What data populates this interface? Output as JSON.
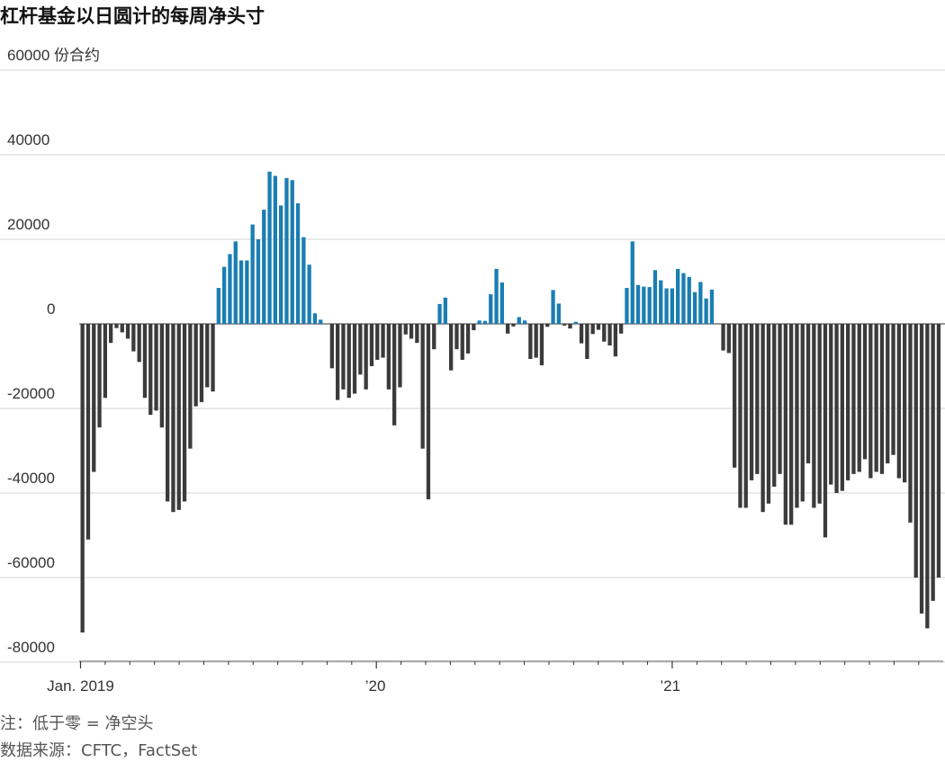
{
  "chart_data": {
    "type": "bar",
    "title": "杠杆基金以日圆计的每周净头寸",
    "ylabel_top": "60000 份合约",
    "ylim": [
      -80000,
      60000
    ],
    "yticks": [
      -80000,
      -60000,
      -40000,
      -20000,
      0,
      20000,
      40000,
      60000
    ],
    "ytick_labels": [
      "-80000",
      "-60000",
      "-40000",
      "-20000",
      "0",
      "20000",
      "40000",
      "60000 份合约"
    ],
    "xtick_labels": [
      {
        "label": "Jan. 2019",
        "week": 0
      },
      {
        "label": "’20",
        "week": 52
      },
      {
        "label": "’21",
        "week": 104
      }
    ],
    "colors": {
      "positive": "#1a7eb3",
      "negative": "#3b3b3b"
    },
    "values": [
      -73000,
      -51000,
      -35000,
      -24500,
      -17500,
      -4500,
      -1000,
      -2000,
      -3500,
      -6500,
      -9000,
      -17500,
      -21500,
      -20500,
      -24500,
      -42000,
      -44500,
      -44000,
      -42000,
      -29500,
      -19500,
      -18500,
      -15000,
      -16000,
      8500,
      13500,
      16500,
      19500,
      15000,
      15000,
      23500,
      20000,
      27000,
      36000,
      35000,
      28000,
      34500,
      34000,
      28500,
      20500,
      14000,
      2500,
      1000,
      0,
      -10500,
      -18000,
      -15500,
      -17500,
      -16500,
      -12000,
      -15500,
      -10000,
      -8500,
      -8000,
      -15500,
      -24000,
      -15000,
      -2500,
      -3500,
      -4500,
      -29500,
      -41500,
      -6000,
      4700,
      6200,
      -11000,
      -6000,
      -8500,
      -7000,
      -1500,
      800,
      700,
      7000,
      13000,
      9800,
      -2300,
      -600,
      1600,
      800,
      -8300,
      -8000,
      -9800,
      -700,
      8000,
      4800,
      -400,
      -1100,
      500,
      -4600,
      -8300,
      -2400,
      -1400,
      -4200,
      -5100,
      -7700,
      -2300,
      8500,
      19500,
      9200,
      8800,
      8700,
      12700,
      10300,
      8400,
      8400,
      13000,
      12000,
      11100,
      7500,
      9900,
      6000,
      8100,
      0,
      -6300,
      -6900,
      -34000,
      -43500,
      -43500,
      -37000,
      -35500,
      -44500,
      -42500,
      -38500,
      -35500,
      -47500,
      -47500,
      -43500,
      -42000,
      -33000,
      -43500,
      -42500,
      -50500,
      -38000,
      -40000,
      -39500,
      -37000,
      -35500,
      -35000,
      -32000,
      -36500,
      -35000,
      -35500,
      -33000,
      -31000,
      -36500,
      -37500,
      -47000,
      -60000,
      -68500,
      -72000,
      -65500,
      -60000
    ]
  },
  "notes": {
    "note": "注：低于零 = 净空头",
    "source": "数据来源：CFTC，FactSet"
  }
}
